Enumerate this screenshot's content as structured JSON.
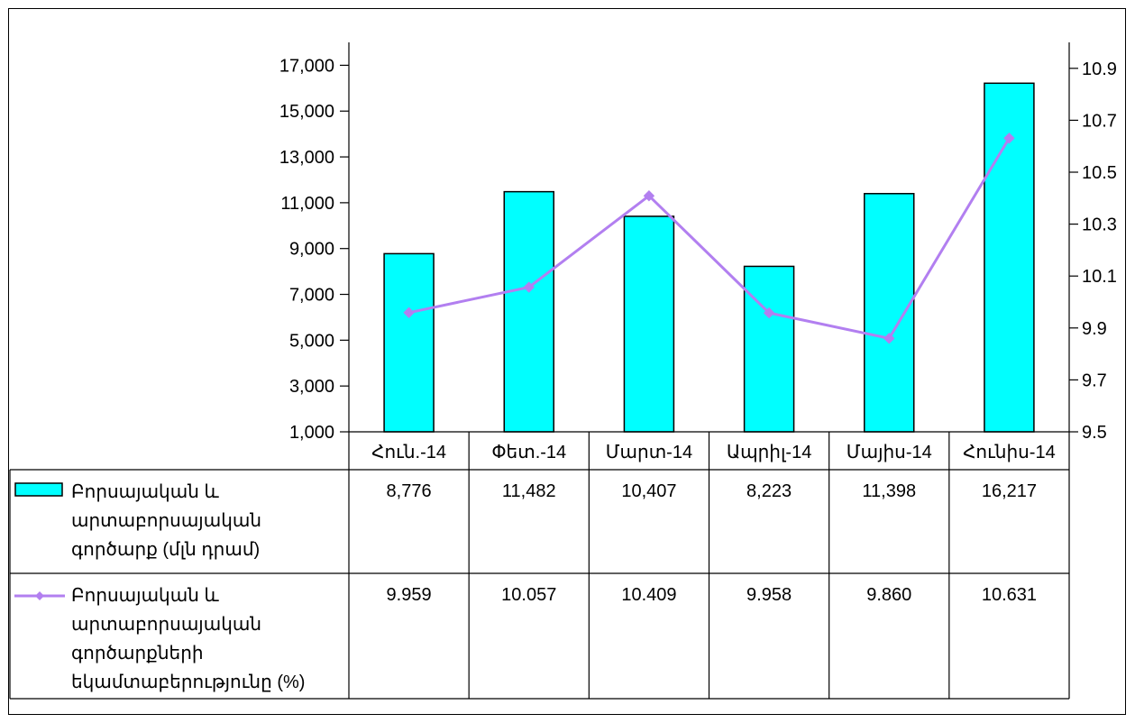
{
  "chart_data": {
    "type": "bar",
    "categories": [
      "Հուն.-14",
      "Փետ.-14",
      "Մարտ-14",
      "Ապրիլ-14",
      "Մայիս-14",
      "Հունիս-14"
    ],
    "series": [
      {
        "name": "Բորսայական և արտաբորսայական գործարք (մլն դրամ)",
        "name_lines": [
          "Բորսայական և",
          "արտաբորսայական",
          "գործարք (մլն դրամ)"
        ],
        "type": "bar",
        "axis": "left",
        "values": [
          8776,
          11482,
          10407,
          8223,
          11398,
          16217
        ],
        "labels": [
          "8,776",
          "11,482",
          "10,407",
          "8,223",
          "11,398",
          "16,217"
        ],
        "color": "#00FFFF"
      },
      {
        "name": "Բորսայական և արտաբորսայական գործարքների եկամտաբերությունը (%)",
        "name_lines": [
          "Բորսայական և",
          "արտաբորսայական",
          "գործարքների",
          "եկամտաբերությունը (%)"
        ],
        "type": "line",
        "axis": "right",
        "values": [
          9.959,
          10.057,
          10.409,
          9.958,
          9.86,
          10.631
        ],
        "labels": [
          "9.959",
          "10.057",
          "10.409",
          "9.958",
          "9.860",
          "10.631"
        ],
        "color": "#B27FF0"
      }
    ],
    "y_left": {
      "min": 1000,
      "max": 18000,
      "ticks": [
        1000,
        3000,
        5000,
        7000,
        9000,
        11000,
        13000,
        15000,
        17000
      ],
      "tick_labels": [
        "1,000",
        "3,000",
        "5,000",
        "7,000",
        "9,000",
        "11,000",
        "13,000",
        "15,000",
        "17,000"
      ]
    },
    "y_right": {
      "min": 9.5,
      "max": 11.0,
      "ticks": [
        9.5,
        9.7,
        9.9,
        10.1,
        10.3,
        10.5,
        10.7,
        10.9
      ],
      "tick_labels": [
        "9.5",
        "9.7",
        "9.9",
        "10.1",
        "10.3",
        "10.5",
        "10.7",
        "10.9"
      ]
    },
    "title": "",
    "xlabel": "",
    "ylabel": "",
    "grid": false,
    "legend": "data-table-left"
  }
}
